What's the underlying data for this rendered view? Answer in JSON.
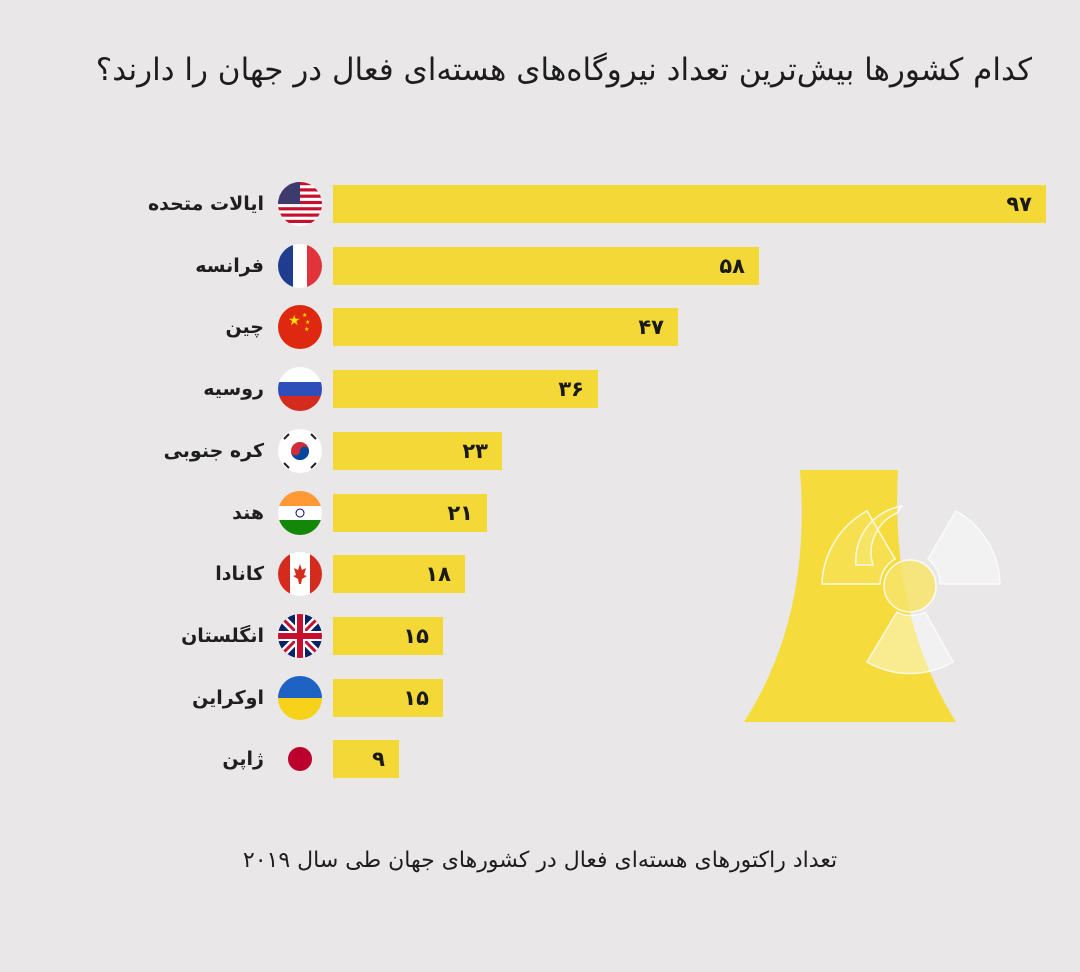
{
  "title": "کدام کشورها بیش‌ترین تعداد نیروگاه‌های هسته‌ای فعال در جهان را دارند؟",
  "footer": "تعداد راکتورهای هسته‌ای فعال در کشورهای جهان طی سال ۲۰۱۹",
  "colors": {
    "bar": "#f4d835",
    "background": "#e9e7e8",
    "decoration": "#f5dc3c"
  },
  "chart_data": {
    "type": "bar",
    "orientation": "horizontal",
    "title": "کدام کشورها بیش‌ترین تعداد نیروگاه‌های هسته‌ای فعال در جهان را دارند؟",
    "caption": "تعداد راکتورهای هسته‌ای فعال در کشورهای جهان طی سال ۲۰۱۹",
    "xlim": [
      0,
      97
    ],
    "categories": [
      "ایالات متحده",
      "فرانسه",
      "چین",
      "روسیه",
      "کره جنوبی",
      "هند",
      "کانادا",
      "انگلستان",
      "اوکراین",
      "ژاپن"
    ],
    "values": [
      97,
      58,
      47,
      36,
      23,
      21,
      18,
      15,
      15,
      9
    ],
    "value_labels": [
      "۹۷",
      "۵۸",
      "۴۷",
      "۳۶",
      "۲۳",
      "۲۱",
      "۱۸",
      "۱۵",
      "۱۵",
      "۹"
    ],
    "flag_icons": [
      "usa-flag-icon",
      "france-flag-icon",
      "china-flag-icon",
      "russia-flag-icon",
      "south-korea-flag-icon",
      "india-flag-icon",
      "canada-flag-icon",
      "uk-flag-icon",
      "ukraine-flag-icon",
      "japan-flag-icon"
    ],
    "grid": false,
    "legend": "none"
  }
}
